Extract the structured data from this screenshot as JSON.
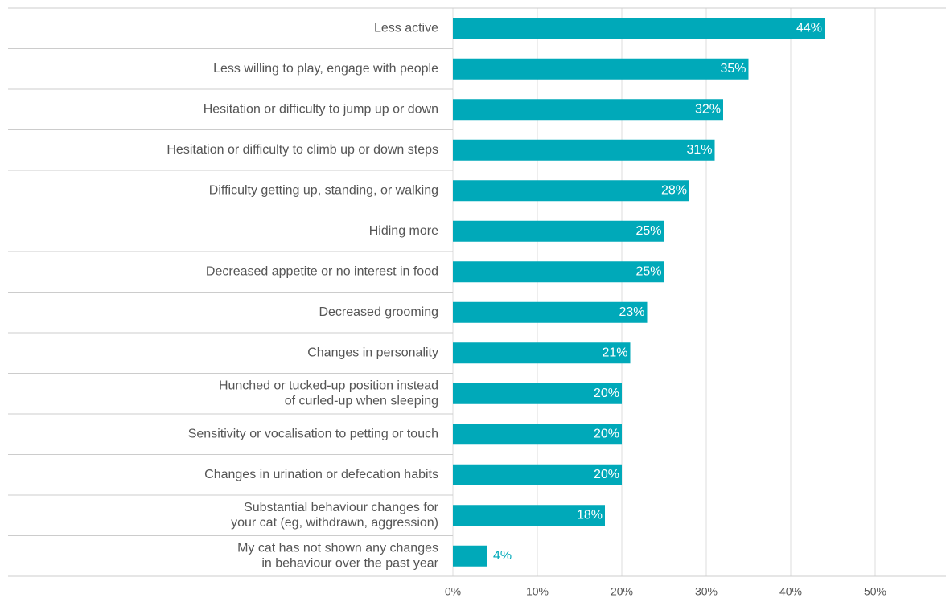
{
  "chart_data": {
    "type": "bar",
    "orientation": "horizontal",
    "categories": [
      "Less active",
      "Less willing to play, engage with people",
      "Hesitation or difficulty to jump up or down",
      "Hesitation or difficulty to climb up or down steps",
      "Difficulty getting up, standing, or walking",
      "Hiding more",
      "Decreased appetite or no interest in food",
      "Decreased grooming",
      "Changes in personality",
      "Hunched or tucked-up position instead\nof curled-up when sleeping",
      "Sensitivity or vocalisation to petting or touch",
      "Changes in urination or defecation habits",
      "Substantial behaviour changes for\nyour cat (eg, withdrawn, aggression)",
      "My cat has not shown any changes\nin behaviour over the past year"
    ],
    "values": [
      44,
      35,
      32,
      31,
      28,
      25,
      25,
      23,
      21,
      20,
      20,
      20,
      18,
      4
    ],
    "value_labels": [
      "44%",
      "35%",
      "32%",
      "31%",
      "28%",
      "25%",
      "25%",
      "23%",
      "21%",
      "20%",
      "20%",
      "20%",
      "18%",
      "4%"
    ],
    "color": "#00a9b9",
    "xlim": [
      0,
      58
    ],
    "xticks": [
      {
        "value": 0,
        "label": "0%"
      },
      {
        "value": 10,
        "label": "10%"
      },
      {
        "value": 20,
        "label": "20%"
      },
      {
        "value": 30,
        "label": "30%"
      },
      {
        "value": 40,
        "label": "40%"
      },
      {
        "value": 50,
        "label": "50%"
      }
    ],
    "grid": true
  }
}
